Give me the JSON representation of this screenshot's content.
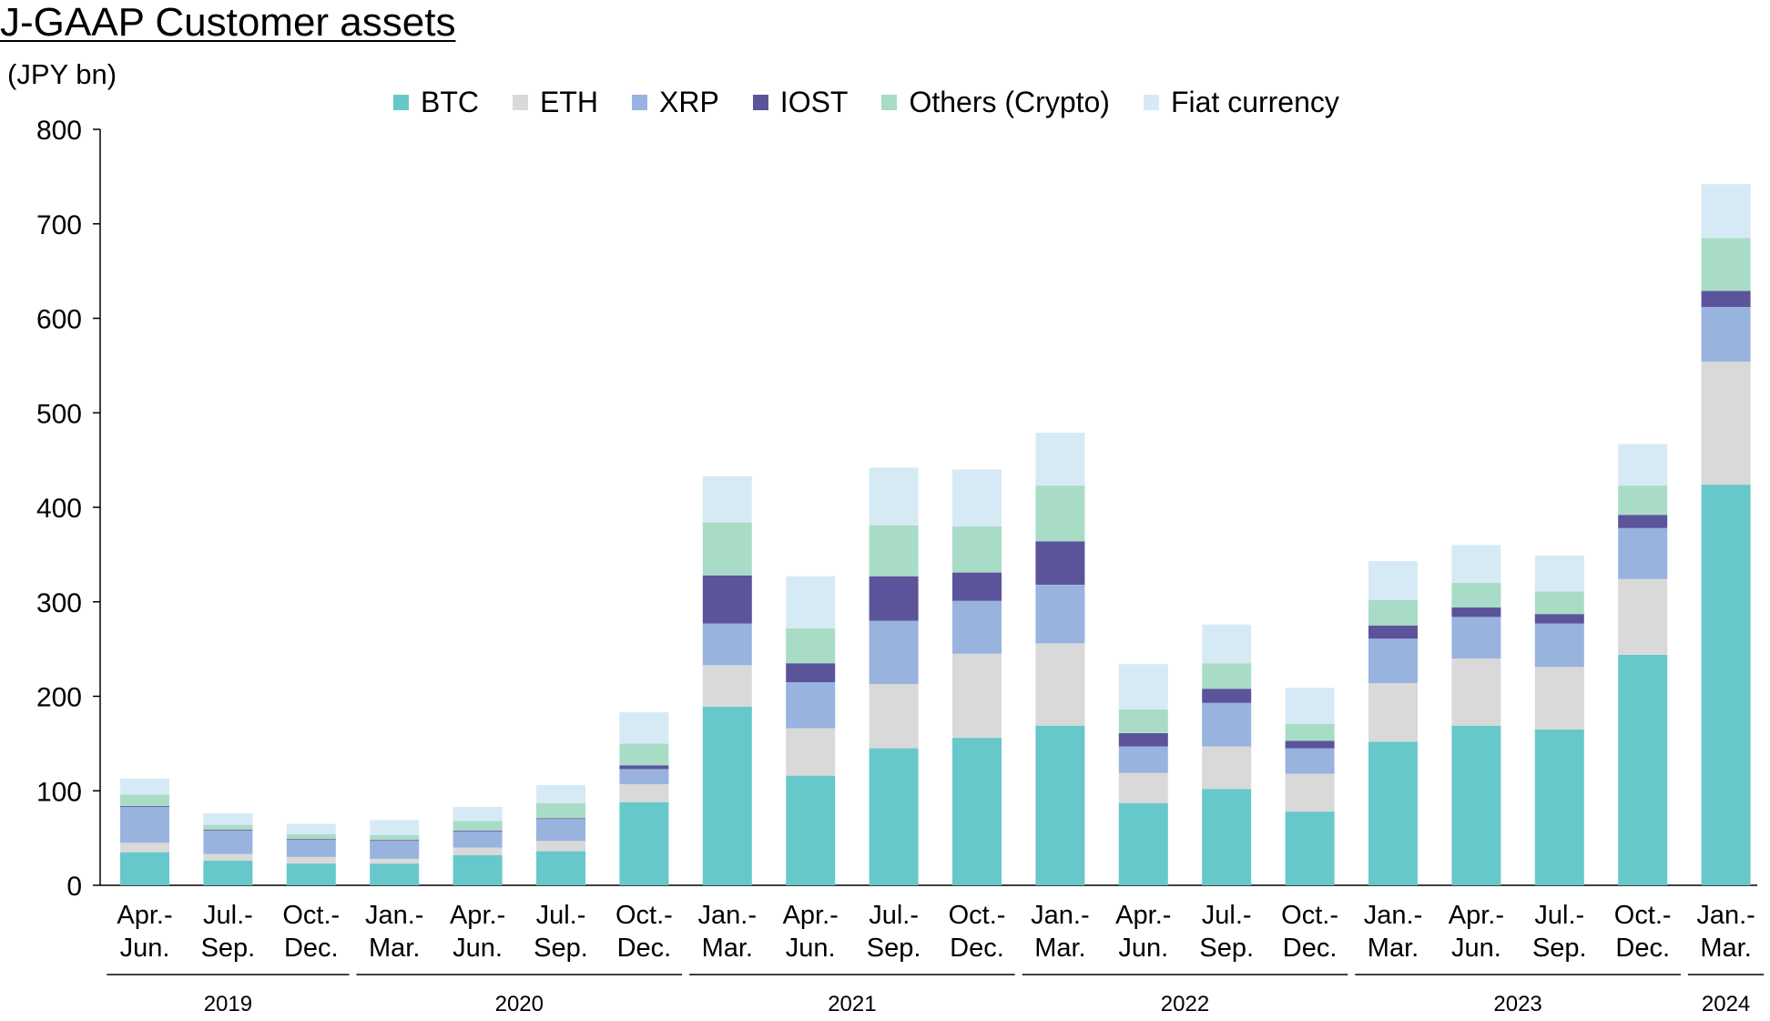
{
  "chart_data": {
    "type": "bar",
    "stacked": true,
    "title": "J-GAAP Customer assets",
    "ylabel": "(JPY bn)",
    "xlabel": "",
    "ylim": [
      0,
      800
    ],
    "yticks": [
      0,
      100,
      200,
      300,
      400,
      500,
      600,
      700,
      800
    ],
    "grid": false,
    "legend_position": "top-center",
    "categories": [
      [
        "Apr.-",
        "Jun."
      ],
      [
        "Jul.-",
        "Sep."
      ],
      [
        "Oct.-",
        "Dec."
      ],
      [
        "Jan.-",
        "Mar."
      ],
      [
        "Apr.-",
        "Jun."
      ],
      [
        "Jul.-",
        "Sep."
      ],
      [
        "Oct.-",
        "Dec."
      ],
      [
        "Jan.-",
        "Mar."
      ],
      [
        "Apr.-",
        "Jun."
      ],
      [
        "Jul.-",
        "Sep."
      ],
      [
        "Oct.-",
        "Dec."
      ],
      [
        "Jan.-",
        "Mar."
      ],
      [
        "Apr.-",
        "Jun."
      ],
      [
        "Jul.-",
        "Sep."
      ],
      [
        "Oct.-",
        "Dec."
      ],
      [
        "Jan.-",
        "Mar."
      ],
      [
        "Apr.-",
        "Jun."
      ],
      [
        "Jul.-",
        "Sep."
      ],
      [
        "Oct.-",
        "Dec."
      ],
      [
        "Jan.-",
        "Mar."
      ]
    ],
    "year_groups": [
      {
        "label": "2019",
        "start": 0,
        "end": 2
      },
      {
        "label": "2020",
        "start": 3,
        "end": 6
      },
      {
        "label": "2021",
        "start": 7,
        "end": 10
      },
      {
        "label": "2022",
        "start": 11,
        "end": 14
      },
      {
        "label": "2023",
        "start": 15,
        "end": 18
      },
      {
        "label": "2024",
        "start": 19,
        "end": 19
      }
    ],
    "series": [
      {
        "name": "BTC",
        "color": "#66c8cb",
        "values": [
          35,
          26,
          23,
          23,
          32,
          36,
          88,
          189,
          116,
          145,
          156,
          169,
          87,
          102,
          78,
          152,
          169,
          165,
          244,
          424
        ]
      },
      {
        "name": "ETH",
        "color": "#d9d9d9",
        "values": [
          10,
          7,
          7,
          5,
          8,
          11,
          19,
          44,
          50,
          68,
          89,
          87,
          32,
          45,
          40,
          62,
          71,
          66,
          80,
          130
        ]
      },
      {
        "name": "XRP",
        "color": "#98b3de",
        "values": [
          38,
          25,
          18,
          19,
          17,
          23,
          16,
          44,
          49,
          67,
          56,
          62,
          28,
          46,
          27,
          47,
          44,
          46,
          54,
          58
        ]
      },
      {
        "name": "IOST",
        "color": "#5b549b",
        "values": [
          1,
          1,
          1,
          1,
          1,
          1,
          4,
          51,
          20,
          47,
          30,
          46,
          14,
          15,
          8,
          14,
          10,
          10,
          14,
          17
        ]
      },
      {
        "name": "Others (Crypto)",
        "color": "#a8dcc6",
        "values": [
          12,
          5,
          5,
          5,
          10,
          16,
          23,
          56,
          37,
          54,
          49,
          59,
          25,
          27,
          18,
          27,
          26,
          24,
          31,
          56
        ]
      },
      {
        "name": "Fiat currency",
        "color": "#d6eaf6",
        "values": [
          17,
          12,
          11,
          16,
          15,
          19,
          33,
          49,
          55,
          61,
          60,
          56,
          48,
          41,
          38,
          41,
          40,
          38,
          44,
          57
        ]
      }
    ]
  }
}
